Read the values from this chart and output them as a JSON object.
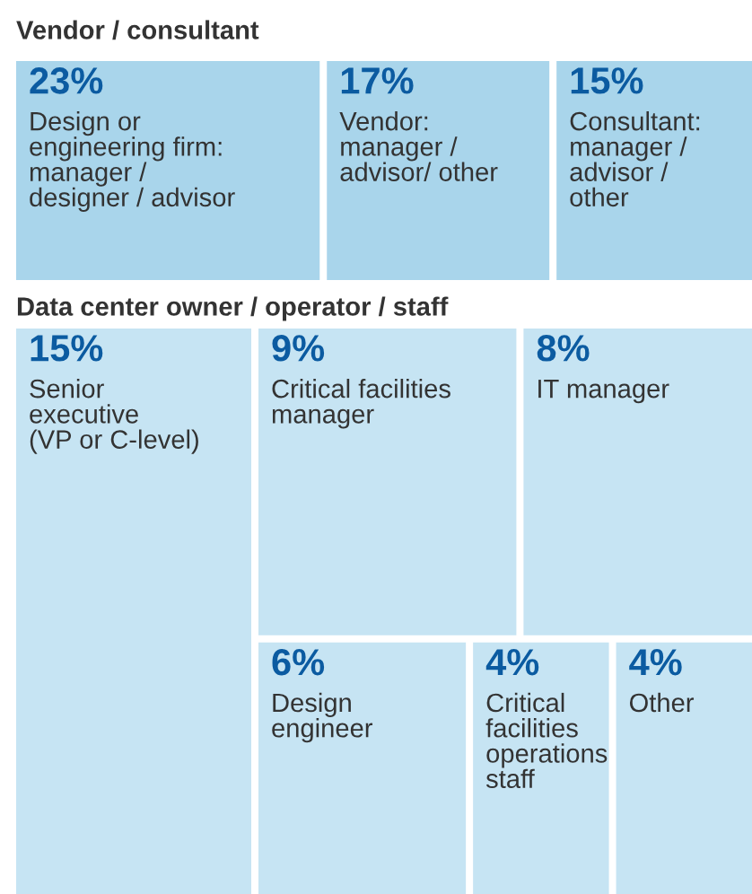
{
  "chart_data": [
    {
      "type": "other",
      "title": "Vendor / consultant",
      "categories": [
        "Design or\nengineering firm:\nmanager /\ndesigner / advisor",
        "Vendor:\nmanager /\nadvisor/ other",
        "Consultant:\nmanager /\nadvisor /\nother"
      ],
      "values": [
        23,
        17,
        15
      ],
      "value_labels": [
        "23%",
        "17%",
        "15%"
      ],
      "colors": [
        "#a9d5eb",
        "#a9d5eb",
        "#a9d5eb"
      ]
    },
    {
      "type": "other",
      "title": "Data center owner / operator / staff",
      "categories": [
        "Senior\nexecutive\n(VP or C-level)",
        "Critical facilities\nmanager",
        "IT manager",
        "Design\nengineer",
        "Critical\nfacilities\noperations\nstaff",
        "Other"
      ],
      "values": [
        15,
        9,
        8,
        6,
        4,
        4
      ],
      "value_labels": [
        "15%",
        "9%",
        "8%",
        "6%",
        "4%",
        "4%"
      ],
      "colors": [
        "#c6e4f3",
        "#c6e4f3",
        "#c6e4f3",
        "#c6e4f3",
        "#c6e4f3",
        "#c6e4f3"
      ]
    }
  ]
}
